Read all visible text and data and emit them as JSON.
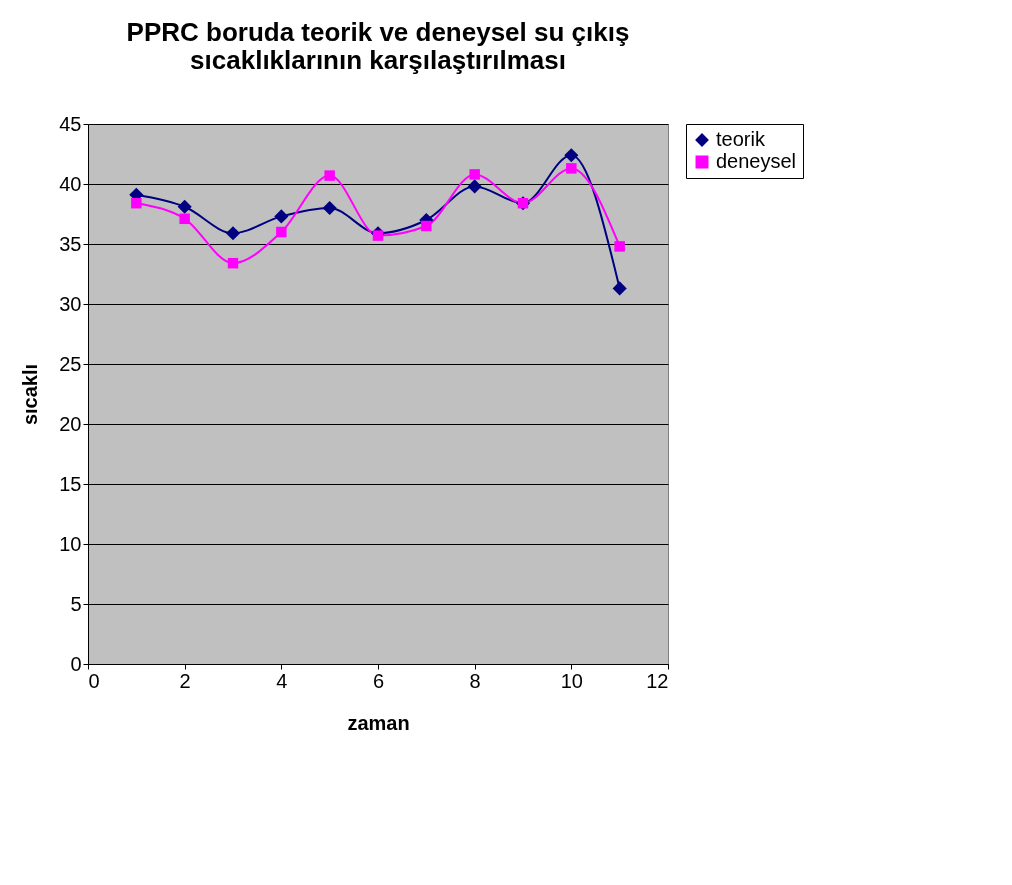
{
  "chart_data": {
    "type": "line",
    "title": [
      "PPRC boruda teorik ve deneysel su çıkış",
      "sıcaklıklarının karşılaştırılması"
    ],
    "xlabel": "zaman",
    "ylabel": "sıcaklı",
    "xlim": [
      0,
      12
    ],
    "xticks": [
      0,
      2,
      4,
      6,
      8,
      10,
      12
    ],
    "ylim": [
      0,
      45
    ],
    "yticks": [
      0,
      5,
      10,
      15,
      20,
      25,
      30,
      35,
      40,
      45
    ],
    "grid": "y",
    "legend": "right",
    "x": [
      1,
      2,
      3,
      4,
      5,
      6,
      7,
      8,
      9,
      10,
      11
    ],
    "series": [
      {
        "name": "teorik",
        "color": "#000080",
        "marker": "diamond",
        "values": [
          39.1,
          38.1,
          35.9,
          37.3,
          38.0,
          35.9,
          37.0,
          39.8,
          38.4,
          42.4,
          31.3
        ]
      },
      {
        "name": "deneysel",
        "color": "#ff00ff",
        "marker": "square",
        "values": [
          38.4,
          37.1,
          33.4,
          36.0,
          40.7,
          35.7,
          36.5,
          40.8,
          38.4,
          41.3,
          34.8
        ]
      }
    ]
  }
}
